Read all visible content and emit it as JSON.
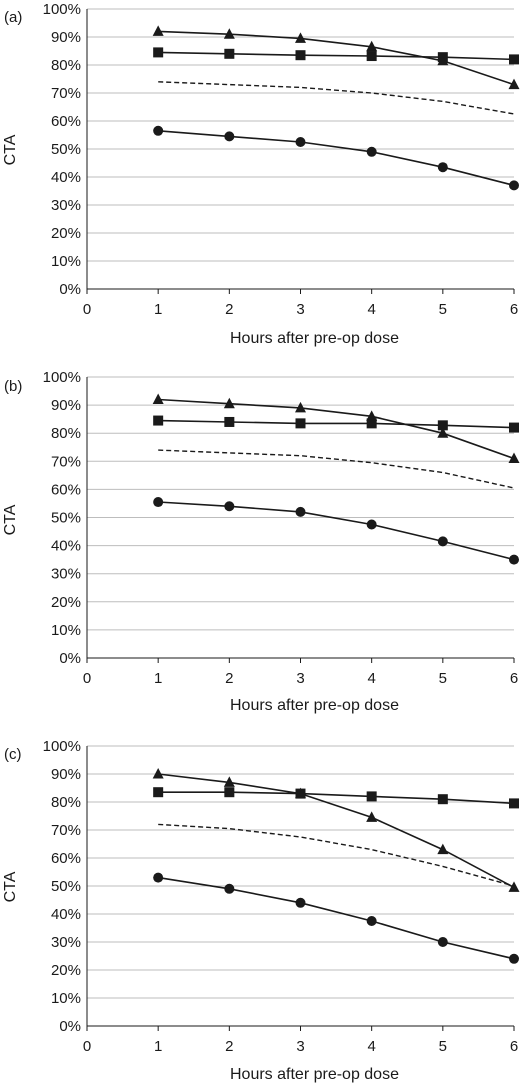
{
  "chart_data": [
    {
      "type": "line",
      "panel_label": "(a)",
      "xlabel": "Hours after pre-op dose",
      "ylabel": "CTA",
      "x_ticks": [
        "0",
        "1",
        "2",
        "3",
        "4",
        "5",
        "6"
      ],
      "y_ticks": [
        "0%",
        "10%",
        "20%",
        "30%",
        "40%",
        "50%",
        "60%",
        "70%",
        "80%",
        "90%",
        "100%"
      ],
      "xlim": [
        0,
        6
      ],
      "ylim": [
        0,
        100
      ],
      "grid": "horizontal",
      "x": [
        1,
        2,
        3,
        4,
        5,
        6
      ],
      "series": [
        {
          "marker": "triangle",
          "dash": "solid",
          "values": [
            92,
            91,
            89.5,
            86.5,
            81.5,
            73
          ]
        },
        {
          "marker": "square",
          "dash": "solid",
          "values": [
            84.5,
            84,
            83.5,
            83.2,
            82.8,
            82
          ]
        },
        {
          "marker": "none",
          "dash": "dashed",
          "values": [
            74,
            73,
            72,
            70,
            67,
            62.5
          ]
        },
        {
          "marker": "circle",
          "dash": "solid",
          "values": [
            56.5,
            54.5,
            52.5,
            49,
            43.5,
            37
          ]
        }
      ]
    },
    {
      "type": "line",
      "panel_label": "(b)",
      "xlabel": "Hours after pre-op dose",
      "ylabel": "CTA",
      "x_ticks": [
        "0",
        "1",
        "2",
        "3",
        "4",
        "5",
        "6"
      ],
      "y_ticks": [
        "0%",
        "10%",
        "20%",
        "30%",
        "40%",
        "50%",
        "60%",
        "70%",
        "80%",
        "90%",
        "100%"
      ],
      "xlim": [
        0,
        6
      ],
      "ylim": [
        0,
        100
      ],
      "grid": "horizontal",
      "x": [
        1,
        2,
        3,
        4,
        5,
        6
      ],
      "series": [
        {
          "marker": "triangle",
          "dash": "solid",
          "values": [
            92,
            90.5,
            89,
            86,
            80,
            71
          ]
        },
        {
          "marker": "square",
          "dash": "solid",
          "values": [
            84.5,
            84,
            83.5,
            83.5,
            82.8,
            82
          ]
        },
        {
          "marker": "none",
          "dash": "dashed",
          "values": [
            74,
            73,
            72,
            69.5,
            66,
            60.5
          ]
        },
        {
          "marker": "circle",
          "dash": "solid",
          "values": [
            55.5,
            54,
            52,
            47.5,
            41.5,
            35
          ]
        }
      ]
    },
    {
      "type": "line",
      "panel_label": "(c)",
      "xlabel": "Hours after pre-op dose",
      "ylabel": "CTA",
      "x_ticks": [
        "0",
        "1",
        "2",
        "3",
        "4",
        "5",
        "6"
      ],
      "y_ticks": [
        "0%",
        "10%",
        "20%",
        "30%",
        "40%",
        "50%",
        "60%",
        "70%",
        "80%",
        "90%",
        "100%"
      ],
      "xlim": [
        0,
        6
      ],
      "ylim": [
        0,
        100
      ],
      "grid": "horizontal",
      "x": [
        1,
        2,
        3,
        4,
        5,
        6
      ],
      "series": [
        {
          "marker": "triangle",
          "dash": "solid",
          "values": [
            90,
            87,
            83,
            74.5,
            63,
            49.5
          ]
        },
        {
          "marker": "square",
          "dash": "solid",
          "values": [
            83.5,
            83.5,
            83,
            82,
            81,
            79.5
          ]
        },
        {
          "marker": "none",
          "dash": "dashed",
          "values": [
            72,
            70.5,
            67.5,
            63,
            57,
            50
          ]
        },
        {
          "marker": "circle",
          "dash": "solid",
          "values": [
            53,
            49,
            44,
            37.5,
            30,
            24
          ]
        }
      ]
    }
  ],
  "colors": {
    "line": "#1a1a1a",
    "grid": "#bdbdbd",
    "text": "#1a1a1a"
  }
}
